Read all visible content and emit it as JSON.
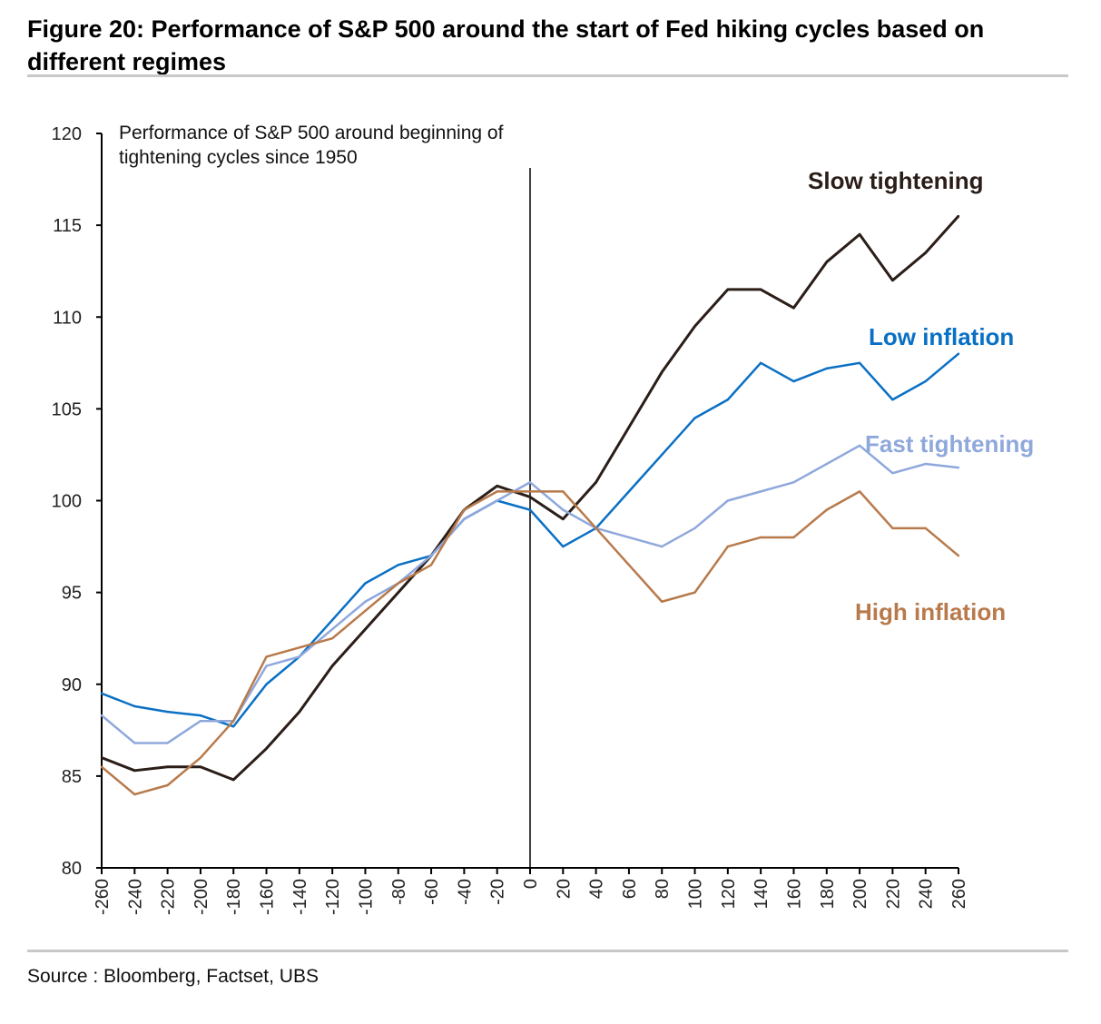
{
  "figure_title": "Figure 20: Performance of S&P 500 around the start of Fed hiking cycles based on different regimes",
  "source": "Source : Bloomberg, Factset, UBS",
  "chart_data": {
    "type": "line",
    "title": "Performance of S&P 500 around beginning of tightening cycles since 1950",
    "title_lines": [
      "Performance of S&P 500 around beginning of",
      "tightening cycles since 1950"
    ],
    "xlabel": "",
    "ylabel": "",
    "xlim": [
      -260,
      260
    ],
    "ylim": [
      80,
      120
    ],
    "grid": false,
    "vertical_marker_x": 0,
    "x_ticks": [
      -260,
      -240,
      -220,
      -200,
      -180,
      -160,
      -140,
      -120,
      -100,
      -80,
      -60,
      -40,
      -20,
      0,
      20,
      40,
      60,
      80,
      100,
      120,
      140,
      160,
      180,
      200,
      220,
      240,
      260
    ],
    "y_ticks": [
      80,
      85,
      90,
      95,
      100,
      105,
      110,
      115,
      120
    ],
    "x": [
      -260,
      -240,
      -220,
      -200,
      -180,
      -160,
      -140,
      -120,
      -100,
      -80,
      -60,
      -40,
      -20,
      0,
      20,
      40,
      60,
      80,
      100,
      120,
      140,
      160,
      180,
      200,
      220,
      240,
      260
    ],
    "series": [
      {
        "name": "Slow tightening",
        "color": "#2b1d17",
        "label_pos": "top-right",
        "values": [
          86,
          85.3,
          85.5,
          85.5,
          84.8,
          86.5,
          88.5,
          91,
          93,
          95,
          97,
          99.5,
          100.8,
          100.2,
          99,
          101,
          104,
          107,
          109.5,
          111.5,
          111.5,
          110.5,
          113,
          114.5,
          112,
          113.5,
          115.5
        ]
      },
      {
        "name": "Low inflation",
        "color": "#0a70c4",
        "label_pos": "right",
        "values": [
          89.5,
          88.8,
          88.5,
          88.3,
          87.7,
          90,
          91.5,
          93.5,
          95.5,
          96.5,
          97,
          99,
          100,
          99.5,
          97.5,
          98.5,
          100.5,
          102.5,
          104.5,
          105.5,
          107.5,
          106.5,
          107.2,
          107.5,
          105.5,
          106.5,
          108
        ]
      },
      {
        "name": "Fast tightening",
        "color": "#8fa8dc",
        "label_pos": "right",
        "values": [
          88.3,
          86.8,
          86.8,
          88,
          88,
          91,
          91.5,
          93,
          94.5,
          95.5,
          97,
          99,
          100,
          101,
          99.5,
          98.5,
          98,
          97.5,
          98.5,
          100,
          100.5,
          101,
          102,
          103,
          101.5,
          102,
          101.8
        ]
      },
      {
        "name": "High inflation",
        "color": "#b87a4b",
        "label_pos": "bottom-right",
        "values": [
          85.5,
          84,
          84.5,
          86,
          88,
          91.5,
          92,
          92.5,
          94,
          95.5,
          96.5,
          99.5,
          100.5,
          100.5,
          100.5,
          98.5,
          96.5,
          94.5,
          95,
          97.5,
          98,
          98,
          99.5,
          100.5,
          98.5,
          98.5,
          97
        ]
      }
    ]
  }
}
